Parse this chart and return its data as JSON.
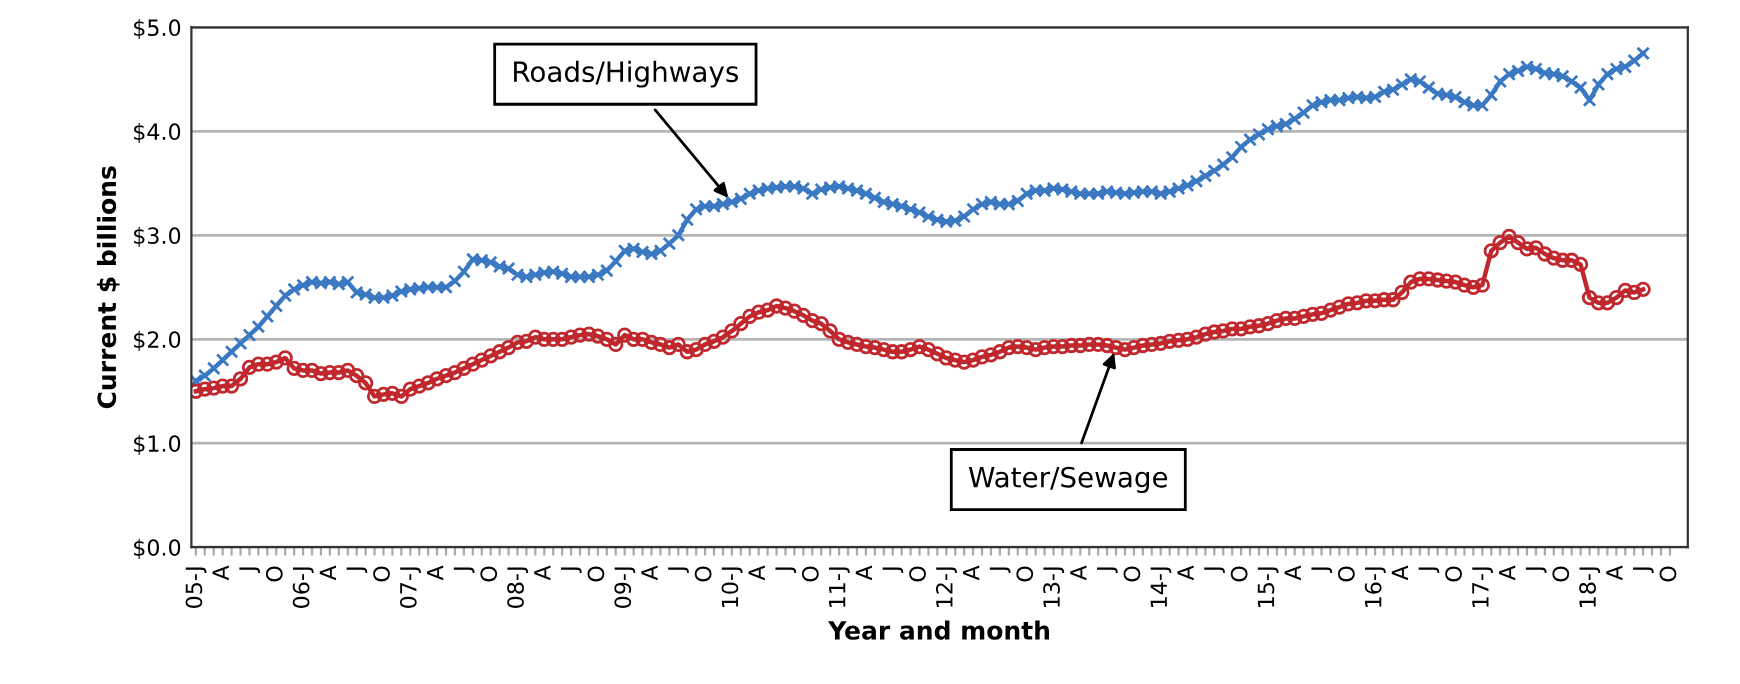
{
  "chart_data": {
    "type": "line",
    "xlabel": "Year and month",
    "ylabel": "Current $ billions",
    "categories": [
      "05-J",
      null,
      null,
      "A",
      null,
      null,
      "J",
      null,
      null,
      "O",
      null,
      null,
      "06-J",
      null,
      null,
      "A",
      null,
      null,
      "J",
      null,
      null,
      "O",
      null,
      null,
      "07-J",
      null,
      null,
      "A",
      null,
      null,
      "J",
      null,
      null,
      "O",
      null,
      null,
      "08-J",
      null,
      null,
      "A",
      null,
      null,
      "J",
      null,
      null,
      "O",
      null,
      null,
      "09-J",
      null,
      null,
      "A",
      null,
      null,
      "J",
      null,
      null,
      "O",
      null,
      null,
      "10-J",
      null,
      null,
      "A",
      null,
      null,
      "J",
      null,
      null,
      "O",
      null,
      null,
      "11-J",
      null,
      null,
      "A",
      null,
      null,
      "J",
      null,
      null,
      "O",
      null,
      null,
      "12-J",
      null,
      null,
      "A",
      null,
      null,
      "J",
      null,
      null,
      "O",
      null,
      null,
      "13-J",
      null,
      null,
      "A",
      null,
      null,
      "J",
      null,
      null,
      "O",
      null,
      null,
      "14-J",
      null,
      null,
      "A",
      null,
      null,
      "J",
      null,
      null,
      "O",
      null,
      null,
      "15-J",
      null,
      null,
      "A",
      null,
      null,
      "J",
      null,
      null,
      "O",
      null,
      null,
      "16-J",
      null,
      null,
      "A",
      null,
      null,
      "J",
      null,
      null,
      "O",
      null,
      null,
      "17-J",
      null,
      null,
      "A",
      null,
      null,
      "J",
      null,
      null,
      "O",
      null,
      null,
      "18-J",
      null,
      null,
      "A",
      null,
      null,
      "J",
      null,
      null,
      "O"
    ],
    "series": [
      {
        "name": "Roads/Highways",
        "color": "#3a78c2",
        "marker": "cross",
        "values": [
          1.6,
          1.65,
          1.72,
          1.8,
          1.88,
          1.96,
          2.04,
          2.12,
          2.22,
          2.32,
          2.42,
          2.48,
          2.52,
          2.55,
          2.54,
          2.55,
          2.53,
          2.55,
          2.45,
          2.43,
          2.4,
          2.4,
          2.42,
          2.46,
          2.48,
          2.49,
          2.5,
          2.5,
          2.5,
          2.56,
          2.65,
          2.77,
          2.76,
          2.74,
          2.7,
          2.68,
          2.62,
          2.6,
          2.62,
          2.64,
          2.65,
          2.63,
          2.6,
          2.6,
          2.6,
          2.62,
          2.66,
          2.75,
          2.85,
          2.87,
          2.84,
          2.82,
          2.85,
          2.92,
          3.0,
          3.15,
          3.25,
          3.28,
          3.28,
          3.3,
          3.32,
          3.35,
          3.4,
          3.43,
          3.45,
          3.46,
          3.47,
          3.47,
          3.45,
          3.4,
          3.44,
          3.46,
          3.47,
          3.45,
          3.43,
          3.4,
          3.36,
          3.32,
          3.3,
          3.28,
          3.25,
          3.22,
          3.18,
          3.15,
          3.13,
          3.14,
          3.18,
          3.25,
          3.3,
          3.32,
          3.3,
          3.3,
          3.33,
          3.4,
          3.43,
          3.43,
          3.45,
          3.44,
          3.42,
          3.4,
          3.4,
          3.4,
          3.42,
          3.41,
          3.4,
          3.41,
          3.42,
          3.42,
          3.4,
          3.42,
          3.45,
          3.48,
          3.52,
          3.57,
          3.62,
          3.68,
          3.75,
          3.85,
          3.92,
          3.97,
          4.02,
          4.05,
          4.07,
          4.12,
          4.18,
          4.25,
          4.28,
          4.3,
          4.3,
          4.32,
          4.33,
          4.32,
          4.33,
          4.38,
          4.4,
          4.45,
          4.5,
          4.48,
          4.42,
          4.36,
          4.35,
          4.33,
          4.28,
          4.25,
          4.25,
          4.35,
          4.48,
          4.55,
          4.58,
          4.62,
          4.6,
          4.56,
          4.55,
          4.53,
          4.48,
          4.42,
          4.3,
          4.45,
          4.55,
          4.6,
          4.62,
          4.68,
          4.75,
          null,
          null,
          null
        ]
      },
      {
        "name": "Water/Sewage",
        "color": "#c0282d",
        "marker": "circle",
        "values": [
          1.5,
          1.52,
          1.53,
          1.55,
          1.55,
          1.62,
          1.73,
          1.76,
          1.76,
          1.78,
          1.82,
          1.72,
          1.7,
          1.7,
          1.67,
          1.68,
          1.68,
          1.7,
          1.65,
          1.58,
          1.45,
          1.47,
          1.48,
          1.45,
          1.52,
          1.55,
          1.58,
          1.62,
          1.65,
          1.68,
          1.72,
          1.76,
          1.8,
          1.84,
          1.88,
          1.92,
          1.97,
          1.98,
          2.02,
          2.0,
          2.0,
          2.0,
          2.02,
          2.04,
          2.05,
          2.03,
          2.0,
          1.95,
          2.04,
          2.0,
          2.0,
          1.97,
          1.95,
          1.92,
          1.95,
          1.88,
          1.9,
          1.95,
          1.98,
          2.02,
          2.08,
          2.15,
          2.22,
          2.26,
          2.28,
          2.32,
          2.3,
          2.27,
          2.23,
          2.18,
          2.15,
          2.08,
          2.0,
          1.97,
          1.95,
          1.93,
          1.92,
          1.9,
          1.88,
          1.88,
          1.9,
          1.93,
          1.9,
          1.86,
          1.82,
          1.8,
          1.78,
          1.8,
          1.83,
          1.85,
          1.88,
          1.92,
          1.93,
          1.92,
          1.9,
          1.92,
          1.93,
          1.93,
          1.94,
          1.94,
          1.95,
          1.95,
          1.94,
          1.92,
          1.9,
          1.92,
          1.94,
          1.95,
          1.96,
          1.98,
          1.99,
          2.0,
          2.02,
          2.05,
          2.07,
          2.08,
          2.1,
          2.1,
          2.12,
          2.13,
          2.15,
          2.18,
          2.2,
          2.2,
          2.22,
          2.24,
          2.25,
          2.28,
          2.31,
          2.34,
          2.35,
          2.37,
          2.37,
          2.38,
          2.38,
          2.45,
          2.55,
          2.58,
          2.58,
          2.57,
          2.56,
          2.55,
          2.52,
          2.5,
          2.52,
          2.85,
          2.93,
          2.99,
          2.93,
          2.87,
          2.88,
          2.82,
          2.78,
          2.76,
          2.76,
          2.72,
          2.4,
          2.35,
          2.35,
          2.4,
          2.47,
          2.45,
          2.48,
          null,
          null,
          null
        ]
      }
    ],
    "ylim": [
      0,
      5
    ],
    "yticks": [
      {
        "value": 0,
        "label": "$0.0"
      },
      {
        "value": 1,
        "label": "$1.0"
      },
      {
        "value": 2,
        "label": "$2.0"
      },
      {
        "value": 3,
        "label": "$3.0"
      },
      {
        "value": 4,
        "label": "$4.0"
      },
      {
        "value": 5,
        "label": "$5.0"
      }
    ],
    "grid": "y",
    "legend": false,
    "line_style": "solid"
  }
}
